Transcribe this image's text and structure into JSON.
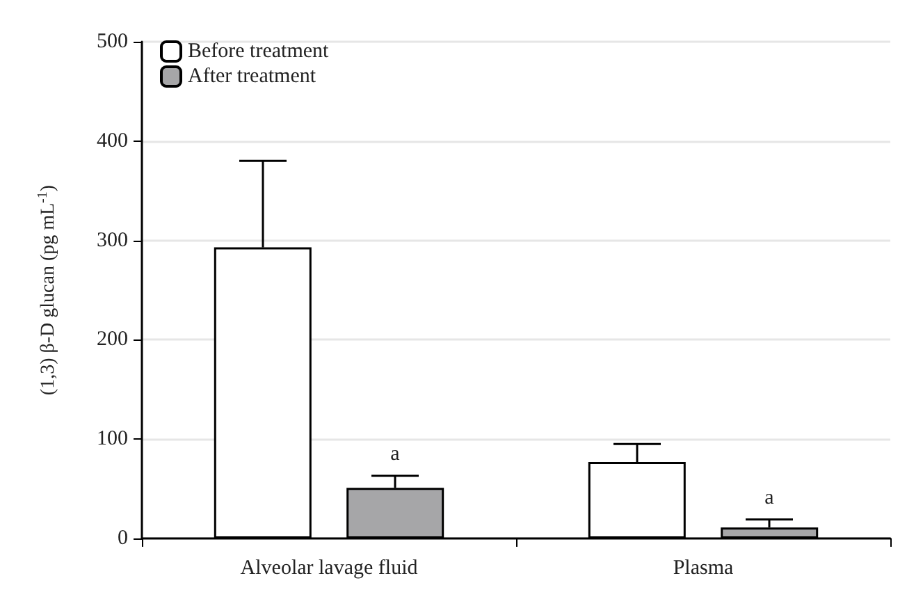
{
  "chart_data": {
    "type": "bar",
    "ylabel": "(1,3) β-D glucan (pg mL$^{-1}$)",
    "categories": [
      "Alveolar lavage fluid",
      "Plasma"
    ],
    "series": [
      {
        "name": "Before treatment",
        "color": "#ffffff",
        "values": [
          293,
          77
        ],
        "errors": [
          [
            293,
            380
          ],
          [
            77,
            95
          ]
        ]
      },
      {
        "name": "After treatment",
        "color": "#a6a6a8",
        "values": [
          51,
          11
        ],
        "errors": [
          [
            51,
            63
          ],
          [
            11,
            19
          ]
        ],
        "value_labels": [
          "a",
          "a"
        ]
      }
    ],
    "ylim": [
      0,
      500
    ],
    "yticks": [
      0,
      100,
      200,
      300,
      400,
      500
    ],
    "grid": "y",
    "legend": "top left"
  }
}
